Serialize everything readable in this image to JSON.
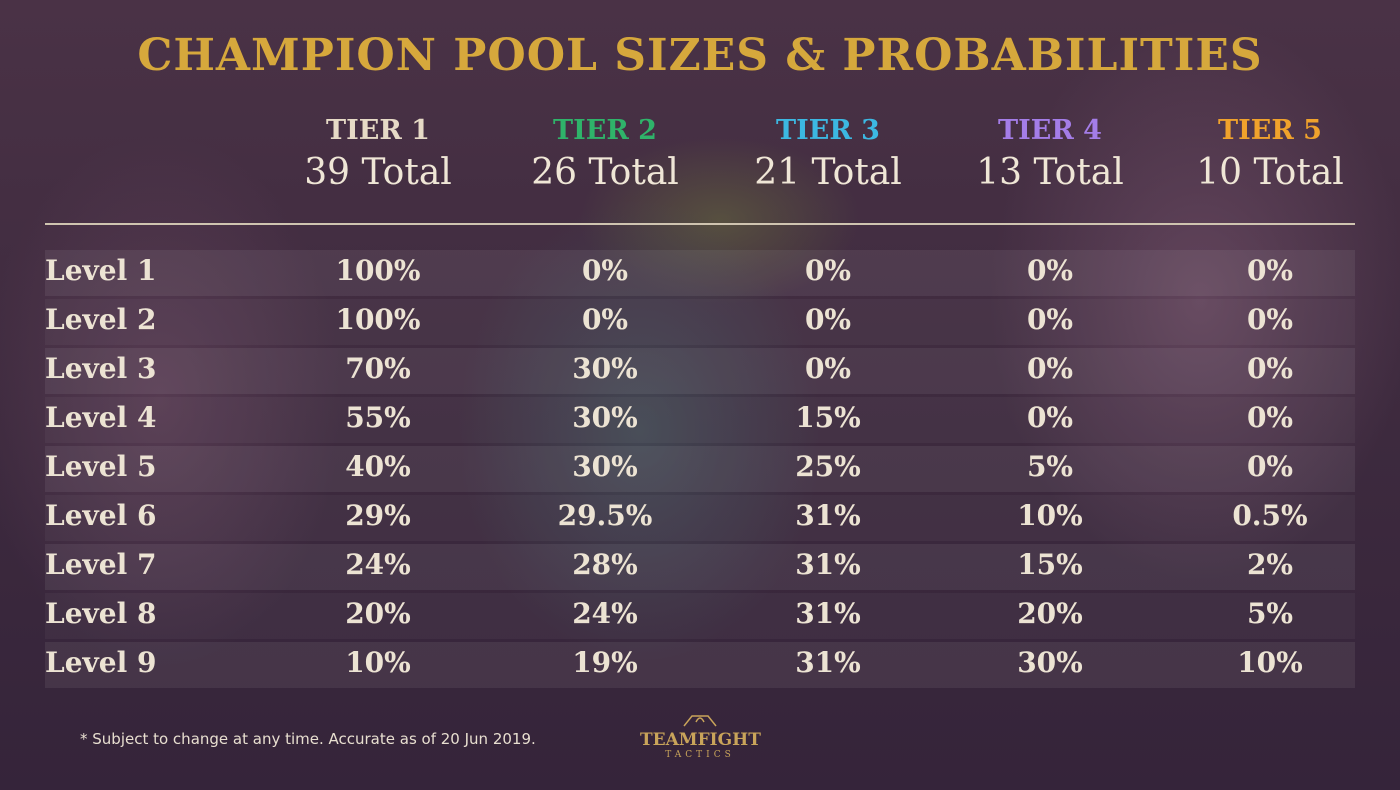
{
  "header": {
    "title": "CHAMPION POOL SIZES & PROBABILITIES"
  },
  "table": {
    "columns": [
      {
        "tier": "TIER 1",
        "total": "39 Total",
        "color": "#e6dac6"
      },
      {
        "tier": "TIER 2",
        "total": "26 Total",
        "color": "#2fb36a"
      },
      {
        "tier": "TIER 3",
        "total": "21 Total",
        "color": "#3cb8e2"
      },
      {
        "tier": "TIER 4",
        "total": "13 Total",
        "color": "#a47de8"
      },
      {
        "tier": "TIER 5",
        "total": "10 Total",
        "color": "#f0a22c"
      }
    ],
    "rows": [
      {
        "label": "Level 1",
        "cells": [
          "100%",
          "0%",
          "0%",
          "0%",
          "0%"
        ]
      },
      {
        "label": "Level 2",
        "cells": [
          "100%",
          "0%",
          "0%",
          "0%",
          "0%"
        ]
      },
      {
        "label": "Level 3",
        "cells": [
          "70%",
          "30%",
          "0%",
          "0%",
          "0%"
        ]
      },
      {
        "label": "Level 4",
        "cells": [
          "55%",
          "30%",
          "15%",
          "0%",
          "0%"
        ]
      },
      {
        "label": "Level 5",
        "cells": [
          "40%",
          "30%",
          "25%",
          "5%",
          "0%"
        ]
      },
      {
        "label": "Level 6",
        "cells": [
          "29%",
          "29.5%",
          "31%",
          "10%",
          "0.5%"
        ]
      },
      {
        "label": "Level 7",
        "cells": [
          "24%",
          "28%",
          "31%",
          "15%",
          "2%"
        ]
      },
      {
        "label": "Level 8",
        "cells": [
          "20%",
          "24%",
          "31%",
          "20%",
          "5%"
        ]
      },
      {
        "label": "Level 9",
        "cells": [
          "10%",
          "19%",
          "31%",
          "30%",
          "10%"
        ]
      }
    ]
  },
  "footer": {
    "note": "* Subject to change at any time. Accurate as of 20 Jun 2019.",
    "logo": {
      "name": "TEAMFIGHT",
      "subtitle": "TACTICS"
    }
  }
}
